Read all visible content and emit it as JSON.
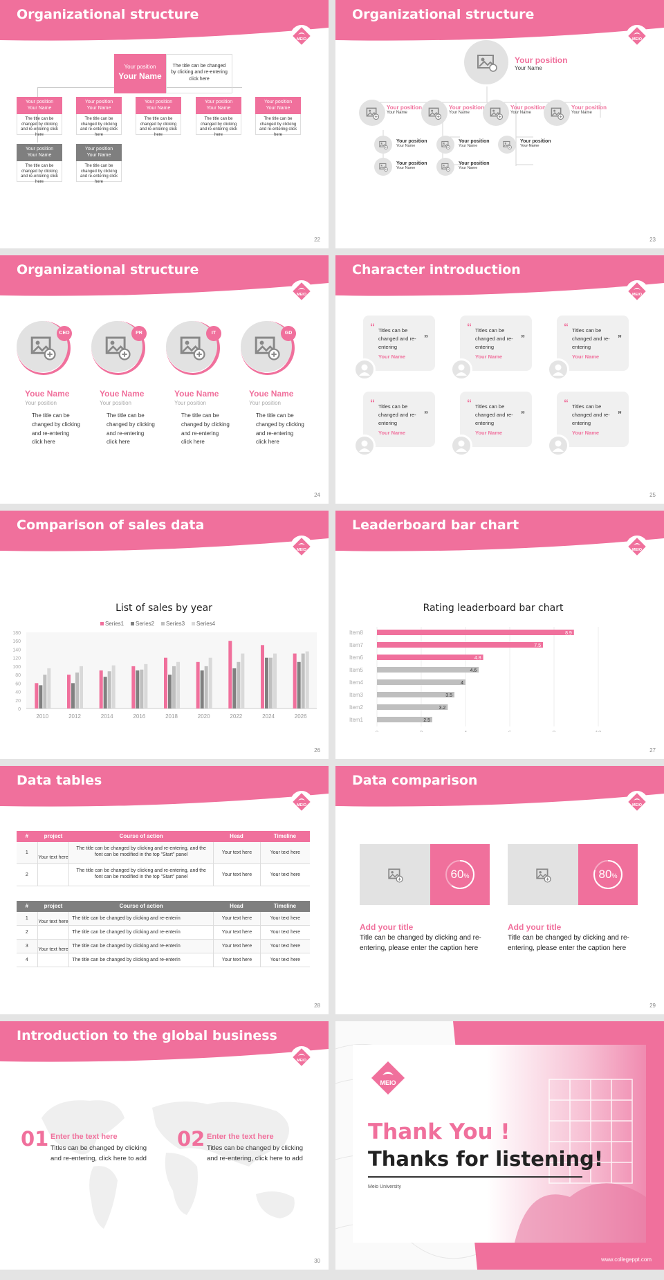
{
  "colors": {
    "accent": "#f0709c",
    "gray": "#7f7f7f",
    "light": "#e2e2e2"
  },
  "logo_text": "MEIO",
  "s22": {
    "title": "Organizational structure",
    "page": "22",
    "top": {
      "position": "Your position",
      "name": "Your Name",
      "desc": "The title can be changed by clicking and re-entering click here"
    },
    "row1": [
      {
        "position": "Your position",
        "name": "Your Name",
        "desc": "The title can be changed by clicking and re-entering click here"
      },
      {
        "position": "Your position",
        "name": "Your Name",
        "desc": "The title can be changed by clicking and re-entering click here"
      },
      {
        "position": "Your position",
        "name": "Your Name",
        "desc": "The title can be changed by clicking and re-entering click here"
      },
      {
        "position": "Your position",
        "name": "Your Name",
        "desc": "The title can be changed by clicking and re-entering click here"
      },
      {
        "position": "Your position",
        "name": "Your Name",
        "desc": "The title can be changed by clicking and re-entering click here"
      }
    ],
    "row2": [
      {
        "position": "Your position",
        "name": "Your Name",
        "desc": "The title can be changed by clicking and re-entering click here"
      },
      {
        "position": "Your position",
        "name": "Your Name",
        "desc": "The title can be changed by clicking and re-entering click here"
      }
    ]
  },
  "s23": {
    "title": "Organizational structure",
    "page": "23",
    "top": {
      "position": "Your position",
      "name": "Your Name"
    },
    "level1": [
      {
        "position": "Your position",
        "name": "Your Name"
      },
      {
        "position": "Your position",
        "name": "Your Name"
      },
      {
        "position": "Your position",
        "name": "Your Name"
      },
      {
        "position": "Your position",
        "name": "Your Name"
      }
    ],
    "level2": [
      {
        "position": "Your position",
        "name": "Your Name"
      },
      {
        "position": "Your position",
        "name": "Your Name"
      },
      {
        "position": "Your position",
        "name": "Your Name"
      },
      {
        "position": "Your position",
        "name": "Your Name"
      },
      {
        "position": "Your position",
        "name": "Your Name"
      }
    ]
  },
  "s24": {
    "title": "Organizational structure",
    "page": "24",
    "people": [
      {
        "tag": "CEO",
        "name": "Youe Name",
        "position": "Your position",
        "desc": "The title can be changed by clicking and re-entering click here"
      },
      {
        "tag": "PR",
        "name": "Youe Name",
        "position": "Your position",
        "desc": "The title can be changed by clicking and re-entering click here"
      },
      {
        "tag": "IT",
        "name": "Youe Name",
        "position": "Your position",
        "desc": "The title can be changed by clicking and re-entering click here"
      },
      {
        "tag": "GD",
        "name": "Youe Name",
        "position": "Your position",
        "desc": "The title can be changed by clicking and re-entering click here"
      }
    ]
  },
  "s25": {
    "title": "Character introduction",
    "page": "25",
    "cards": [
      {
        "text": "Titles can be changed and re-entering",
        "name": "Your Name"
      },
      {
        "text": "Titles can be changed and re-entering",
        "name": "Your Name"
      },
      {
        "text": "Titles can be changed and re-entering",
        "name": "Your Name"
      },
      {
        "text": "Titles can be changed and re-entering",
        "name": "Your Name"
      },
      {
        "text": "Titles can be changed and re-entering",
        "name": "Your Name"
      },
      {
        "text": "Titles can be changed and re-entering",
        "name": "Your Name"
      }
    ]
  },
  "s26": {
    "title": "Comparison of sales data",
    "page": "26"
  },
  "s27": {
    "title": "Leaderboard bar chart",
    "page": "27"
  },
  "s28": {
    "title": "Data tables",
    "page": "28",
    "t1": {
      "headers": [
        "#",
        "project",
        "Course of action",
        "Head",
        "Timeline"
      ],
      "project": "Your text here",
      "rows": [
        {
          "n": "1",
          "action": "The title can be changed by clicking and re-entering, and the font can be modified in the top \"Start\" panel",
          "head": "Your text here",
          "time": "Your text here"
        },
        {
          "n": "2",
          "action": "The title can be changed by clicking and re-entering, and the font can be modified in the top \"Start\" panel",
          "head": "Your text here",
          "time": "Your text here"
        }
      ]
    },
    "t2": {
      "headers": [
        "#",
        "project",
        "Course of action",
        "Head",
        "Timeline"
      ],
      "project1": "Your text here",
      "project2": "Your text here",
      "rows": [
        {
          "n": "1",
          "action": "The title can be changed by clicking and re-enterin",
          "head": "Your text here",
          "time": "Your text here"
        },
        {
          "n": "2",
          "action": "The title can be changed by clicking and re-enterin",
          "head": "Your text here",
          "time": "Your text here"
        },
        {
          "n": "3",
          "action": "The title can be changed by clicking and re-enterin",
          "head": "Your text here",
          "time": "Your text here"
        },
        {
          "n": "4",
          "action": "The title can be changed by clicking and re-enterin",
          "head": "Your text here",
          "time": "Your text here"
        }
      ]
    }
  },
  "s29": {
    "title": "Data comparison",
    "page": "29",
    "items": [
      {
        "percent": 60,
        "num": "60",
        "unit": "%",
        "title": "Add your title",
        "desc": "Title can be changed by clicking and re-entering, please enter the caption here"
      },
      {
        "percent": 80,
        "num": "80",
        "unit": "%",
        "title": "Add your title",
        "desc": "Title can be changed by clicking and re-entering, please enter the caption here"
      }
    ]
  },
  "s30": {
    "title": "Introduction to the global business",
    "page": "30",
    "items": [
      {
        "num": "01",
        "head": "Enter the text here",
        "desc": "Titles can be changed by clicking and re-entering, click here to add"
      },
      {
        "num": "02",
        "head": "Enter the text here",
        "desc": "Titles can be changed by clicking and re-entering, click here to add"
      }
    ]
  },
  "s31": {
    "thank": "Thank You !",
    "listen": "Thanks for listening!",
    "univ": "Meio University",
    "url": "www.collegeppt.com"
  },
  "chart_data": [
    {
      "type": "bar",
      "title": "List of sales by year",
      "categories": [
        "2010",
        "2012",
        "2014",
        "2016",
        "2018",
        "2020",
        "2022",
        "2024",
        "2026"
      ],
      "series": [
        {
          "name": "Series1",
          "color": "#f0709c",
          "values": [
            60,
            80,
            90,
            100,
            120,
            110,
            160,
            150,
            130
          ]
        },
        {
          "name": "Series2",
          "color": "#808080",
          "values": [
            55,
            60,
            75,
            90,
            80,
            90,
            95,
            120,
            110
          ]
        },
        {
          "name": "Series3",
          "color": "#bfbfbf",
          "values": [
            80,
            85,
            88,
            92,
            100,
            100,
            110,
            120,
            130
          ]
        },
        {
          "name": "Series4",
          "color": "#d9d9d9",
          "values": [
            95,
            100,
            102,
            105,
            110,
            120,
            130,
            130,
            135
          ]
        }
      ],
      "ylim": [
        0,
        180
      ],
      "yticks": [
        0,
        20,
        40,
        60,
        80,
        100,
        120,
        140,
        160,
        180
      ],
      "legend": "top"
    },
    {
      "type": "bar",
      "orientation": "horizontal",
      "title": "Rating leaderboard bar chart",
      "categories": [
        "Item8",
        "Item7",
        "Item6",
        "Item5",
        "Item4",
        "Item3",
        "Item2",
        "Item1"
      ],
      "values": [
        8.9,
        7.5,
        4.8,
        4.6,
        4,
        3.5,
        3.2,
        2.5
      ],
      "labels": [
        "8.9",
        "7.5",
        "4.8",
        "4.6",
        "4",
        "3.5",
        "3.2",
        "2.5"
      ],
      "colors": [
        "#f0709c",
        "#f0709c",
        "#f0709c",
        "#bfbfbf",
        "#bfbfbf",
        "#bfbfbf",
        "#bfbfbf",
        "#bfbfbf"
      ],
      "xlim": [
        0,
        10
      ],
      "xticks": [
        0,
        2,
        4,
        6,
        8,
        10
      ]
    }
  ]
}
